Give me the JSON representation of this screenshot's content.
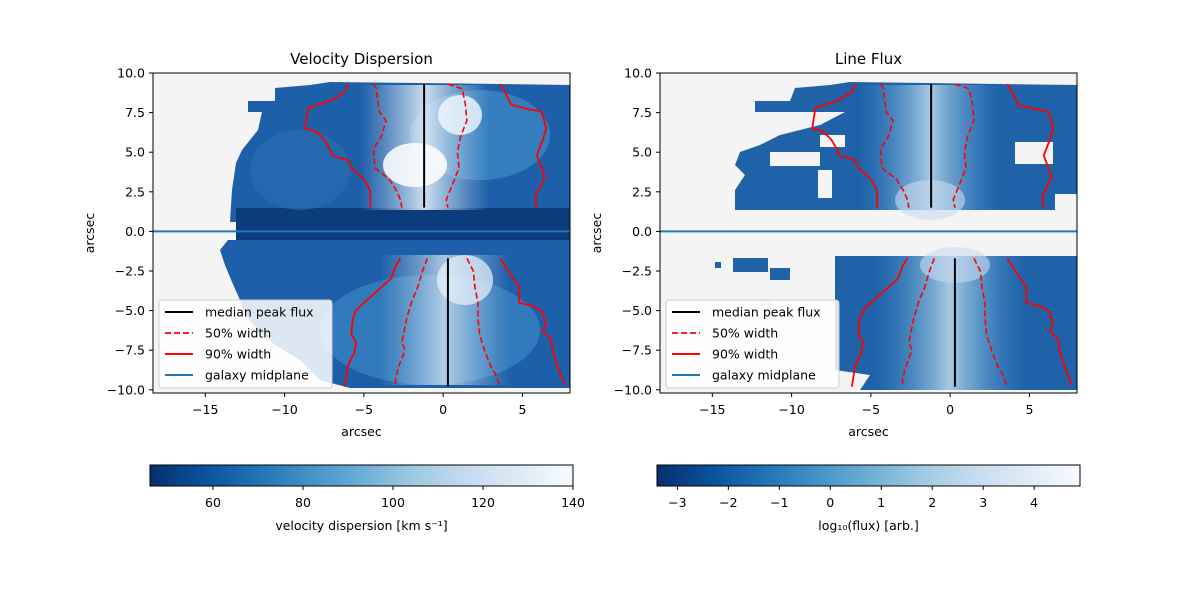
{
  "chart_data": [
    {
      "type": "heatmap",
      "title": "Velocity Dispersion",
      "xlabel": "arcsec",
      "ylabel": "arcsec",
      "xlim": [
        -18.3,
        8.0
      ],
      "ylim": [
        -10.2,
        10.0
      ],
      "xticks": [
        -15,
        -10,
        -5,
        0,
        5
      ],
      "xtick_labels": [
        "−15",
        "−10",
        "−5",
        "0",
        "5"
      ],
      "yticks": [
        10.0,
        7.5,
        5.0,
        2.5,
        0.0,
        -2.5,
        -5.0,
        -7.5,
        -10.0
      ],
      "ytick_labels": [
        "10.0",
        "7.5",
        "5.0",
        "2.5",
        "0.0",
        "−2.5",
        "−5.0",
        "−7.5",
        "−10.0"
      ],
      "colorbar": {
        "label": "velocity dispersion [km s⁻¹]",
        "range": [
          46,
          140
        ],
        "ticks": [
          60,
          80,
          100,
          120,
          140
        ],
        "tick_labels": [
          "60",
          "80",
          "100",
          "120",
          "140"
        ],
        "colormap": [
          "#08306b",
          "#08519c",
          "#2171b5",
          "#4292c6",
          "#6baed6",
          "#9ecae1",
          "#c6dbef",
          "#deebf7",
          "#f7fbff"
        ]
      },
      "midplane_y": 0.0,
      "median_peak_flux": {
        "top": {
          "x": -1.2,
          "y": [
            1.5,
            9.3
          ]
        },
        "bottom": {
          "x": 0.3,
          "y": [
            -1.7,
            -9.8
          ]
        }
      },
      "width50": {
        "top_left": {
          "x": [
            -4.4,
            -4.2,
            -4.1,
            -4.0,
            -3.6,
            -3.9,
            -4.4,
            -4.3,
            -3.4,
            -2.9,
            -2.7,
            -2.6
          ],
          "y": [
            9.3,
            9.0,
            8.0,
            7.5,
            7.0,
            6.0,
            5.2,
            4.0,
            3.3,
            2.5,
            2.0,
            1.5
          ]
        },
        "top_right": {
          "x": [
            0.3,
            1.2,
            1.4,
            1.5,
            1.1,
            0.9,
            1.0,
            0.6,
            0.2,
            0.3
          ],
          "y": [
            9.3,
            9.0,
            8.0,
            7.0,
            6.0,
            5.0,
            4.0,
            3.0,
            2.0,
            1.5
          ]
        },
        "bottom_left": {
          "x": [
            -1.0,
            -1.3,
            -1.6,
            -2.0,
            -2.3,
            -2.5,
            -2.6,
            -2.4,
            -2.8,
            -3.0,
            -3.0
          ],
          "y": [
            -1.7,
            -2.5,
            -3.5,
            -4.5,
            -5.5,
            -6.5,
            -7.0,
            -7.5,
            -8.5,
            -9.3,
            -9.8
          ]
        },
        "bottom_right": {
          "x": [
            1.5,
            1.9,
            2.0,
            2.2,
            2.2,
            2.3,
            2.6,
            3.0,
            3.3,
            3.6
          ],
          "y": [
            -1.7,
            -2.5,
            -3.5,
            -4.5,
            -5.5,
            -6.5,
            -7.5,
            -8.5,
            -9.0,
            -9.8
          ]
        }
      },
      "width90": {
        "top_left": {
          "x": [
            -6.0,
            -6.2,
            -7.0,
            -8.5,
            -8.7,
            -8.0,
            -7.5,
            -7.2,
            -7.0,
            -6.0,
            -5.8,
            -5.2,
            -4.8,
            -4.6,
            -4.6
          ],
          "y": [
            9.3,
            8.8,
            8.3,
            7.8,
            6.5,
            6.3,
            5.8,
            5.3,
            4.8,
            4.5,
            4.0,
            3.5,
            3.0,
            2.5,
            1.5
          ]
        },
        "top_right": {
          "x": [
            3.6,
            3.8,
            4.3,
            5.4,
            6.1,
            6.3,
            6.5,
            6.3,
            5.9,
            6.2,
            6.4,
            6.1,
            5.8,
            5.9
          ],
          "y": [
            9.3,
            9.0,
            8.0,
            7.7,
            7.6,
            7.3,
            6.5,
            5.8,
            4.8,
            4.0,
            3.4,
            2.8,
            2.2,
            1.5
          ]
        },
        "bottom_left": {
          "x": [
            -2.7,
            -3.0,
            -3.3,
            -5.0,
            -5.5,
            -5.7,
            -5.8,
            -5.5,
            -5.6,
            -5.8,
            -6.0,
            -6.2
          ],
          "y": [
            -1.7,
            -2.2,
            -3.0,
            -4.5,
            -5.0,
            -5.5,
            -6.5,
            -7.0,
            -7.7,
            -8.0,
            -8.5,
            -9.8
          ]
        },
        "bottom_right": {
          "x": [
            3.6,
            4.1,
            4.8,
            4.8,
            5.6,
            6.2,
            6.5,
            6.3,
            6.5,
            6.8,
            6.9,
            7.2,
            7.4,
            7.6,
            7.6
          ],
          "y": [
            -1.7,
            -2.5,
            -3.5,
            -4.5,
            -4.7,
            -5.0,
            -5.8,
            -6.3,
            -6.5,
            -6.8,
            -7.5,
            -8.5,
            -9.0,
            -9.5,
            -9.7
          ]
        }
      },
      "legend": {
        "location": "lower-left",
        "entries": [
          "median peak flux",
          "50% width",
          "90% width",
          "galaxy midplane"
        ],
        "colors": [
          "#000000",
          "#ff0000",
          "#ff0000",
          "#1f77b4"
        ],
        "styles": [
          "solid",
          "dashed",
          "solid",
          "solid"
        ]
      }
    },
    {
      "type": "heatmap",
      "title": "Line Flux",
      "xlabel": "arcsec",
      "ylabel": "arcsec",
      "xlim": [
        -18.3,
        8.0
      ],
      "ylim": [
        -10.2,
        10.0
      ],
      "xticks": [
        -15,
        -10,
        -5,
        0,
        5
      ],
      "xtick_labels": [
        "−15",
        "−10",
        "−5",
        "0",
        "5"
      ],
      "yticks": [
        10.0,
        7.5,
        5.0,
        2.5,
        0.0,
        -2.5,
        -5.0,
        -7.5,
        -10.0
      ],
      "ytick_labels": [
        "10.0",
        "7.5",
        "5.0",
        "2.5",
        "0.0",
        "−2.5",
        "−5.0",
        "−7.5",
        "−10.0"
      ],
      "colorbar": {
        "label": "log₁₀(flux) [arb.]",
        "range": [
          -3.4,
          4.9
        ],
        "ticks": [
          -3,
          -2,
          -1,
          0,
          1,
          2,
          3,
          4
        ],
        "tick_labels": [
          "−3",
          "−2",
          "−1",
          "0",
          "1",
          "2",
          "3",
          "4"
        ],
        "colormap": [
          "#08306b",
          "#08519c",
          "#2171b5",
          "#4292c6",
          "#6baed6",
          "#9ecae1",
          "#c6dbef",
          "#deebf7",
          "#f7fbff"
        ]
      },
      "midplane_y": 0.0,
      "median_peak_flux": {
        "top": {
          "x": -1.2,
          "y": [
            1.5,
            9.3
          ]
        },
        "bottom": {
          "x": 0.3,
          "y": [
            -1.7,
            -9.8
          ]
        }
      },
      "width50": {
        "top_left": {
          "x": [
            -4.4,
            -4.2,
            -4.1,
            -4.0,
            -3.6,
            -3.9,
            -4.4,
            -4.3,
            -3.4,
            -2.9,
            -2.7,
            -2.6
          ],
          "y": [
            9.3,
            9.0,
            8.0,
            7.5,
            7.0,
            6.0,
            5.2,
            4.0,
            3.3,
            2.5,
            2.0,
            1.5
          ]
        },
        "top_right": {
          "x": [
            0.3,
            1.2,
            1.4,
            1.5,
            1.1,
            0.9,
            1.0,
            0.6,
            0.2,
            0.3
          ],
          "y": [
            9.3,
            9.0,
            8.0,
            7.0,
            6.0,
            5.0,
            4.0,
            3.0,
            2.0,
            1.5
          ]
        },
        "bottom_left": {
          "x": [
            -1.0,
            -1.3,
            -1.6,
            -2.0,
            -2.3,
            -2.5,
            -2.6,
            -2.4,
            -2.8,
            -3.0,
            -3.0
          ],
          "y": [
            -1.7,
            -2.5,
            -3.5,
            -4.5,
            -5.5,
            -6.5,
            -7.0,
            -7.5,
            -8.5,
            -9.3,
            -9.8
          ]
        },
        "bottom_right": {
          "x": [
            1.5,
            1.9,
            2.0,
            2.2,
            2.2,
            2.3,
            2.6,
            3.0,
            3.3,
            3.6
          ],
          "y": [
            -1.7,
            -2.5,
            -3.5,
            -4.5,
            -5.5,
            -6.5,
            -7.5,
            -8.5,
            -9.0,
            -9.8
          ]
        }
      },
      "width90": {
        "top_left": {
          "x": [
            -6.0,
            -6.2,
            -7.0,
            -8.5,
            -8.7,
            -8.0,
            -7.5,
            -7.2,
            -7.0,
            -6.0,
            -5.8,
            -5.2,
            -4.8,
            -4.6,
            -4.6
          ],
          "y": [
            9.3,
            8.8,
            8.3,
            7.8,
            6.5,
            6.3,
            5.8,
            5.3,
            4.8,
            4.5,
            4.0,
            3.5,
            3.0,
            2.5,
            1.5
          ]
        },
        "top_right": {
          "x": [
            3.6,
            3.8,
            4.3,
            5.4,
            6.1,
            6.3,
            6.5,
            6.3,
            5.9,
            6.2,
            6.4,
            6.1,
            5.8,
            5.9
          ],
          "y": [
            9.3,
            9.0,
            8.0,
            7.7,
            7.6,
            7.3,
            6.5,
            5.8,
            4.8,
            4.0,
            3.4,
            2.8,
            2.2,
            1.5
          ]
        },
        "bottom_left": {
          "x": [
            -2.7,
            -3.0,
            -3.3,
            -5.0,
            -5.5,
            -5.7,
            -5.8,
            -5.5,
            -5.6,
            -5.8,
            -6.0,
            -6.2
          ],
          "y": [
            -1.7,
            -2.2,
            -3.0,
            -4.5,
            -5.0,
            -5.5,
            -6.5,
            -7.0,
            -7.7,
            -8.0,
            -8.5,
            -9.8
          ]
        },
        "bottom_right": {
          "x": [
            3.6,
            4.1,
            4.8,
            4.8,
            5.6,
            6.2,
            6.5,
            6.3,
            6.5,
            6.8,
            6.9,
            7.2,
            7.4,
            7.6,
            7.6
          ],
          "y": [
            -1.7,
            -2.5,
            -3.5,
            -4.5,
            -4.7,
            -5.0,
            -5.8,
            -6.3,
            -6.5,
            -6.8,
            -7.5,
            -8.5,
            -9.0,
            -9.5,
            -9.7
          ]
        }
      },
      "legend": {
        "location": "lower-left",
        "entries": [
          "median peak flux",
          "50% width",
          "90% width",
          "galaxy midplane"
        ],
        "colors": [
          "#000000",
          "#ff0000",
          "#ff0000",
          "#1f77b4"
        ],
        "styles": [
          "solid",
          "dashed",
          "solid",
          "solid"
        ]
      }
    }
  ]
}
